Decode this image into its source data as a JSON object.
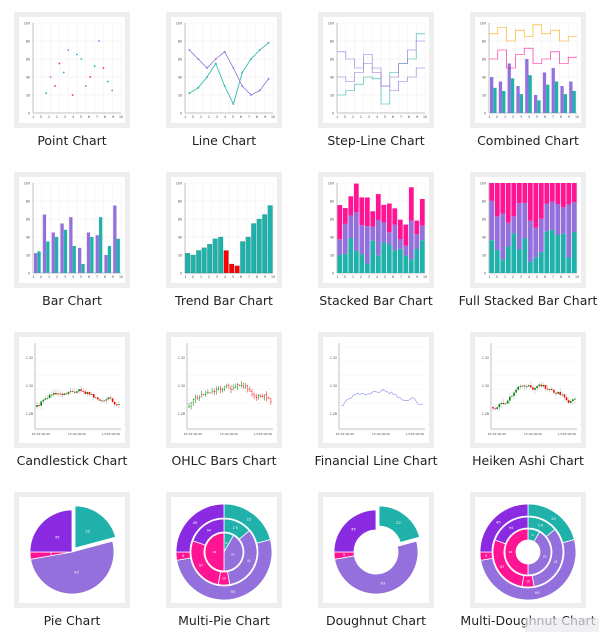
{
  "gallery": {
    "items": [
      {
        "key": "point",
        "label": "Point Chart"
      },
      {
        "key": "line",
        "label": "Line Chart"
      },
      {
        "key": "stepline",
        "label": "Step-Line Chart"
      },
      {
        "key": "combined",
        "label": "Combined Chart"
      },
      {
        "key": "bar",
        "label": "Bar Chart"
      },
      {
        "key": "trendbar",
        "label": "Trend Bar Chart"
      },
      {
        "key": "stackedbar",
        "label": "Stacked Bar Chart"
      },
      {
        "key": "fullstackedbar",
        "label": "Full Stacked Bar Chart"
      },
      {
        "key": "candlestick",
        "label": "Candlestick Chart"
      },
      {
        "key": "ohlc",
        "label": "OHLC Bars Chart"
      },
      {
        "key": "financialline",
        "label": "Financial Line Chart"
      },
      {
        "key": "heikenashi",
        "label": "Heiken Ashi Chart"
      },
      {
        "key": "pie",
        "label": "Pie Chart"
      },
      {
        "key": "multipie",
        "label": "Multi-Pie Chart"
      },
      {
        "key": "doughnut",
        "label": "Doughnut Chart"
      },
      {
        "key": "multidoughnut",
        "label": "Multi-Doughnut Chart"
      }
    ]
  },
  "colors": {
    "purple": "#9370db",
    "teal": "#20b2aa",
    "pink": "#ff1493",
    "orange": "#ffa500",
    "red": "#ff0000",
    "green": "#008000",
    "darkpurple": "#8a2be2"
  },
  "pie_labels": {
    "a": "22",
    "b": "45",
    "c": "5",
    "d": "93"
  },
  "inner_labels": {
    "a": "2 6",
    "b": "41",
    "c": "10",
    "d": "87",
    "e": "94",
    "f": "6",
    "g": "81"
  }
}
